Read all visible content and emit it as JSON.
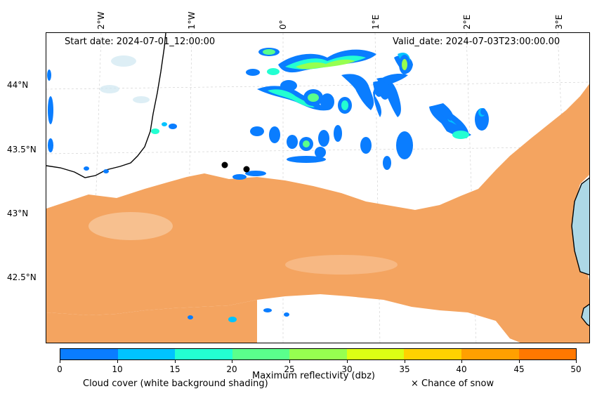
{
  "map": {
    "start_date": "Start date: 2024-07-01_12:00:00",
    "valid_date": "Valid_date: 2024-07-03T23:00:00.00",
    "lon_labels": [
      "2°W",
      "1°W",
      "0°",
      "1°E",
      "2°E",
      "3°E"
    ],
    "lat_labels": [
      "44°N",
      "43.5°N",
      "43°N",
      "42.5°N"
    ],
    "colors": {
      "cloud_cover": "#f4a460",
      "sea": "#add8e6",
      "coastline": "#000000",
      "marker": "#000000"
    }
  },
  "colorbar": {
    "label": "Maximum reflectivity (dbz)",
    "ticks": [
      "0",
      "10",
      "15",
      "20",
      "25",
      "30",
      "35",
      "40",
      "45",
      "50"
    ],
    "colors": [
      "#0a7dff",
      "#00c3ff",
      "#23ffd2",
      "#5aff8c",
      "#96ff50",
      "#dcff14",
      "#ffd200",
      "#ffa000",
      "#ff7800"
    ]
  },
  "legend": {
    "cloud_cover": "Cloud cover (white background shading)",
    "snow": "× Chance of snow"
  }
}
